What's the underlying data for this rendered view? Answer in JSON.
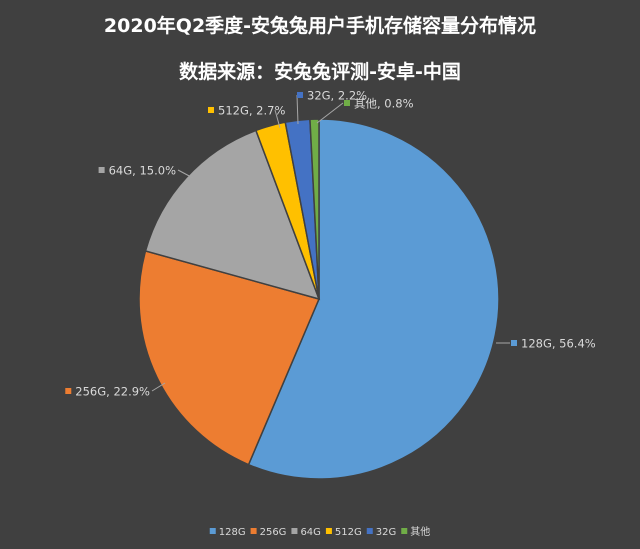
{
  "chart_data": {
    "type": "pie",
    "title": "2020年Q2季度-安兔兔用户手机存储容量分布情况",
    "subtitle": "数据来源：安兔兔评测-安卓-中国",
    "legend_position": "bottom",
    "slices": [
      {
        "name": "128G",
        "value": 56.4,
        "label": "128G, 56.4%",
        "color": "#5b9bd5"
      },
      {
        "name": "256G",
        "value": 22.9,
        "label": "256G, 22.9%",
        "color": "#ed7d31"
      },
      {
        "name": "64G",
        "value": 15.0,
        "label": "64G, 15.0%",
        "color": "#a5a5a5"
      },
      {
        "name": "512G",
        "value": 2.7,
        "label": "512G, 2.7%",
        "color": "#ffc000"
      },
      {
        "name": "32G",
        "value": 2.2,
        "label": "32G, 2.2%",
        "color": "#4472c4"
      },
      {
        "name": "其他",
        "value": 0.8,
        "label": "其他, 0.8%",
        "color": "#70ad47"
      }
    ]
  }
}
